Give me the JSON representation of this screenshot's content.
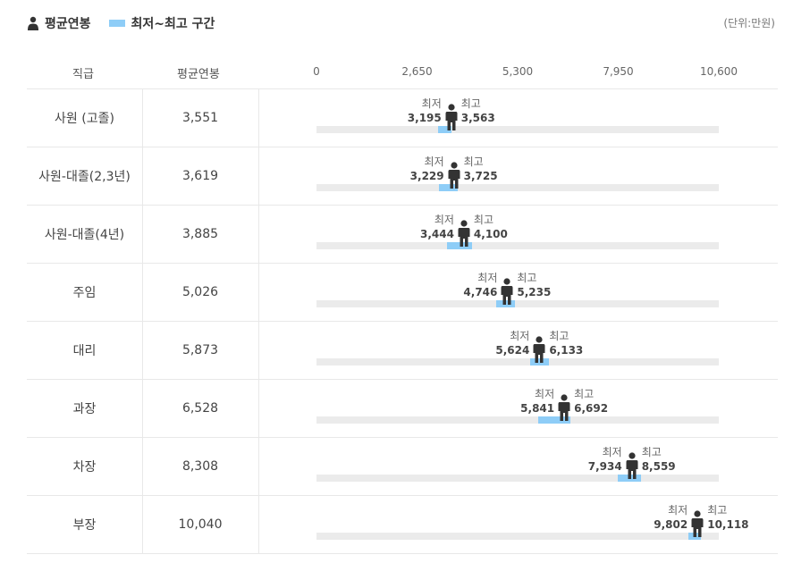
{
  "legend": {
    "avg_label": "평균연봉",
    "range_label": "최저~최고 구간",
    "icon": "person-icon",
    "range_color": "#8ecdf7"
  },
  "unit_label": "(단위:만원)",
  "table": {
    "col_rank": "직급",
    "col_avg": "평균연봉"
  },
  "chart_data": {
    "type": "range-dot",
    "xlim": [
      0,
      10600
    ],
    "ticks": [
      "0",
      "2,650",
      "5,300",
      "7,950",
      "10,600"
    ],
    "min_label": "최저",
    "max_label": "최고",
    "rows": [
      {
        "rank": "사원 (고졸)",
        "avg": 3551,
        "avg_text": "3,551",
        "min": 3195,
        "min_text": "3,195",
        "max": 3563,
        "max_text": "3,563"
      },
      {
        "rank": "사원-대졸(2,3년)",
        "avg": 3619,
        "avg_text": "3,619",
        "min": 3229,
        "min_text": "3,229",
        "max": 3725,
        "max_text": "3,725"
      },
      {
        "rank": "사원-대졸(4년)",
        "avg": 3885,
        "avg_text": "3,885",
        "min": 3444,
        "min_text": "3,444",
        "max": 4100,
        "max_text": "4,100"
      },
      {
        "rank": "주임",
        "avg": 5026,
        "avg_text": "5,026",
        "min": 4746,
        "min_text": "4,746",
        "max": 5235,
        "max_text": "5,235"
      },
      {
        "rank": "대리",
        "avg": 5873,
        "avg_text": "5,873",
        "min": 5624,
        "min_text": "5,624",
        "max": 6133,
        "max_text": "6,133"
      },
      {
        "rank": "과장",
        "avg": 6528,
        "avg_text": "6,528",
        "min": 5841,
        "min_text": "5,841",
        "max": 6692,
        "max_text": "6,692"
      },
      {
        "rank": "차장",
        "avg": 8308,
        "avg_text": "8,308",
        "min": 7934,
        "min_text": "7,934",
        "max": 8559,
        "max_text": "8,559"
      },
      {
        "rank": "부장",
        "avg": 10040,
        "avg_text": "10,040",
        "min": 9802,
        "min_text": "9,802",
        "max": 10118,
        "max_text": "10,118"
      }
    ]
  }
}
